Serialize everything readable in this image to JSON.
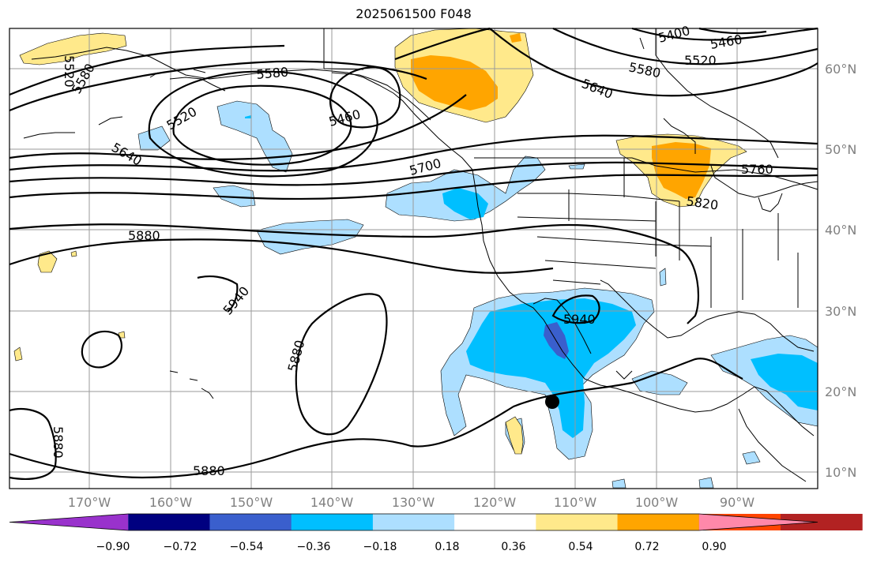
{
  "title": "2025061500 F048",
  "lon_labels": [
    "170°W",
    "160°W",
    "150°W",
    "140°W",
    "130°W",
    "120°W",
    "110°W",
    "100°W",
    "90°W"
  ],
  "lat_labels": [
    "60°N",
    "50°N",
    "40°N",
    "30°N",
    "20°N",
    "10°N"
  ],
  "contour_labels": [
    "5400",
    "5460",
    "5520",
    "5580",
    "5640",
    "5520",
    "5580",
    "5460",
    "5580",
    "5520",
    "5640",
    "5700",
    "5760",
    "5820",
    "5880",
    "5940",
    "5940",
    "5880",
    "5880",
    "5880"
  ],
  "colorbar": {
    "ticks": [
      "−0.90",
      "−0.72",
      "−0.54",
      "−0.36",
      "−0.18",
      "0.18",
      "0.36",
      "0.54",
      "0.72",
      "0.90"
    ],
    "colors": [
      "#9932CC",
      "#000080",
      "#3A5FCD",
      "#00BFFF",
      "#ADDFFF",
      "#FFFFFF",
      "#FFE98B",
      "#FFA500",
      "#FF4500",
      "#B22222",
      "#FF88AA"
    ]
  },
  "colors": {
    "light_blue": "#ADDFFF",
    "blue": "#00BFFF",
    "dark_blue": "#3A5FCD",
    "light_yellow": "#FFE98B",
    "orange": "#FFA500"
  }
}
